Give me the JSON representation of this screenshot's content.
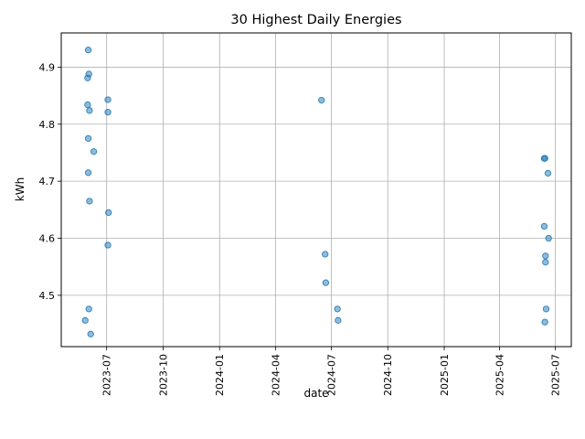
{
  "chart_data": {
    "type": "scatter",
    "title": "30 Highest Daily Energies",
    "xlabel": "date",
    "ylabel": "kWh",
    "xlim": [
      "2023-04-18",
      "2025-07-27"
    ],
    "ylim": [
      4.41,
      4.96
    ],
    "grid": true,
    "point_color": "#1f77b4",
    "x_ticks": [
      "2023-07",
      "2023-10",
      "2024-01",
      "2024-04",
      "2024-07",
      "2024-10",
      "2025-01",
      "2025-04",
      "2025-07"
    ],
    "y_ticks": [
      "4.5",
      "4.6",
      "4.7",
      "4.8",
      "4.9"
    ],
    "points": [
      {
        "x": "2023-06-01",
        "y": 4.93
      },
      {
        "x": "2023-06-02",
        "y": 4.888
      },
      {
        "x": "2023-05-31",
        "y": 4.881
      },
      {
        "x": "2023-05-31",
        "y": 4.834
      },
      {
        "x": "2023-06-03",
        "y": 4.824
      },
      {
        "x": "2023-06-01",
        "y": 4.775
      },
      {
        "x": "2023-06-01",
        "y": 4.715
      },
      {
        "x": "2023-06-03",
        "y": 4.665
      },
      {
        "x": "2023-06-02",
        "y": 4.476
      },
      {
        "x": "2023-05-27",
        "y": 4.456
      },
      {
        "x": "2023-06-05",
        "y": 4.432
      },
      {
        "x": "2023-06-10",
        "y": 4.752
      },
      {
        "x": "2023-07-03",
        "y": 4.843
      },
      {
        "x": "2023-07-03",
        "y": 4.821
      },
      {
        "x": "2023-07-04",
        "y": 4.645
      },
      {
        "x": "2023-07-03",
        "y": 4.588
      },
      {
        "x": "2024-06-15",
        "y": 4.842
      },
      {
        "x": "2024-06-21",
        "y": 4.572
      },
      {
        "x": "2024-06-22",
        "y": 4.522
      },
      {
        "x": "2024-07-11",
        "y": 4.476
      },
      {
        "x": "2024-07-12",
        "y": 4.456
      },
      {
        "x": "2025-06-13",
        "y": 4.74
      },
      {
        "x": "2025-06-14",
        "y": 4.74
      },
      {
        "x": "2025-06-13",
        "y": 4.621
      },
      {
        "x": "2025-06-15",
        "y": 4.569
      },
      {
        "x": "2025-06-15",
        "y": 4.558
      },
      {
        "x": "2025-06-16",
        "y": 4.476
      },
      {
        "x": "2025-06-14",
        "y": 4.453
      },
      {
        "x": "2025-06-19",
        "y": 4.714
      },
      {
        "x": "2025-06-20",
        "y": 4.6
      }
    ]
  }
}
